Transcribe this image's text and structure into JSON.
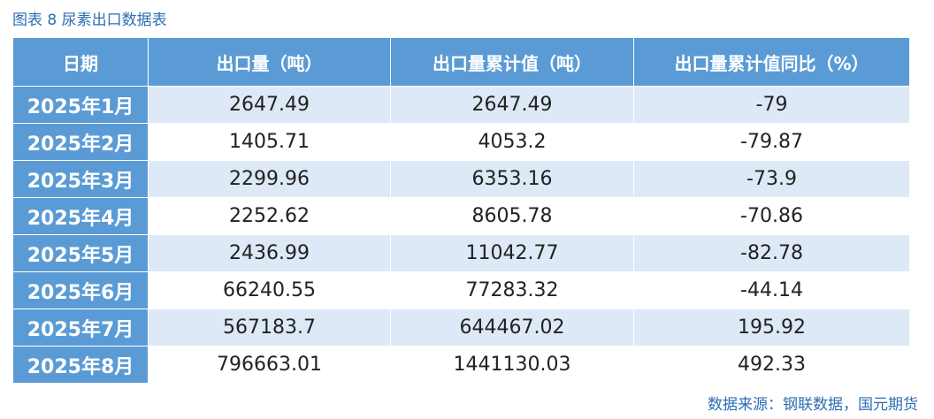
{
  "header": {
    "title": "图表 8 尿素出口数据表"
  },
  "table": {
    "columns": [
      "日期",
      "出口量（吨）",
      "出口量累计值（吨）",
      "出口量累计值同比（%）"
    ],
    "rows": [
      [
        "2025年1月",
        "2647.49",
        "2647.49",
        "-79"
      ],
      [
        "2025年2月",
        "1405.71",
        "4053.2",
        "-79.87"
      ],
      [
        "2025年3月",
        "2299.96",
        "6353.16",
        "-73.9"
      ],
      [
        "2025年4月",
        "2252.62",
        "8605.78",
        "-70.86"
      ],
      [
        "2025年5月",
        "2436.99",
        "11042.77",
        "-82.78"
      ],
      [
        "2025年6月",
        "66240.55",
        "77283.32",
        "-44.14"
      ],
      [
        "2025年7月",
        "567183.7",
        "644467.02",
        "195.92"
      ],
      [
        "2025年8月",
        "796663.01",
        "1441130.03",
        "492.33"
      ]
    ]
  },
  "footer": {
    "source": "数据来源：钢联数据，国元期货"
  }
}
